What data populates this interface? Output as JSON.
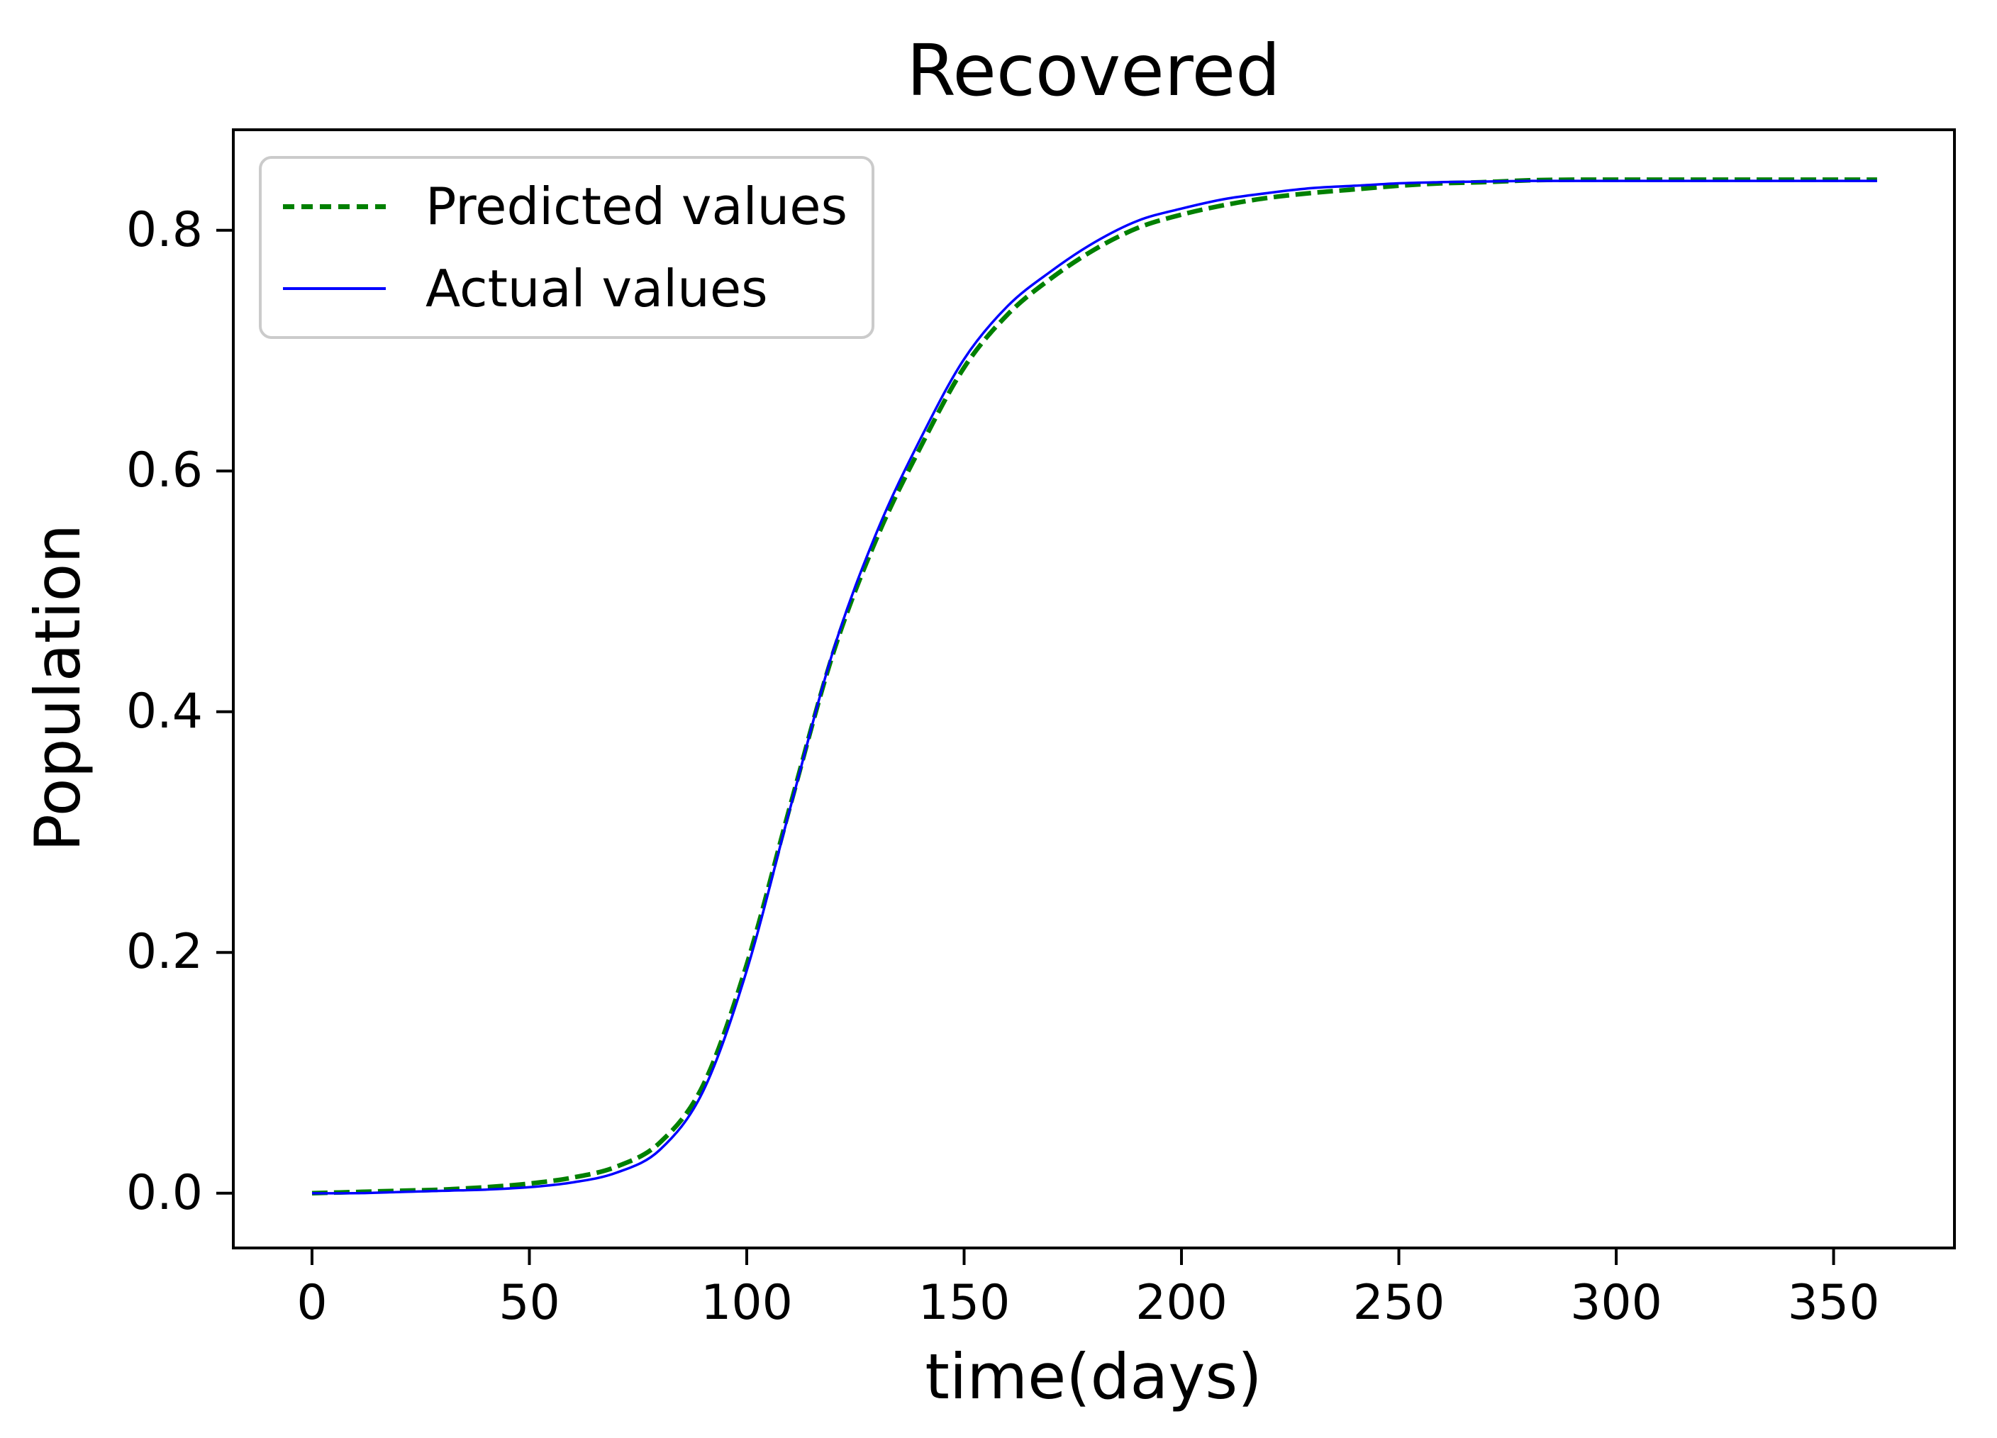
{
  "figure": {
    "background": "#ffffff",
    "axis_color": "#000000",
    "legend_border_color": "#cbcbcb"
  },
  "chart_data": {
    "type": "line",
    "title": "Recovered",
    "xlabel": "time(days)",
    "ylabel": "Population",
    "xlim": [
      -18.1,
      377.8
    ],
    "ylim": [
      -0.0455,
      0.8835
    ],
    "x_ticks": [
      0,
      50,
      100,
      150,
      200,
      250,
      300,
      350
    ],
    "y_ticks": [
      "0.0",
      "0.2",
      "0.4",
      "0.6",
      "0.8"
    ],
    "grid": false,
    "legend_position": "upper left",
    "x": [
      0,
      10,
      20,
      30,
      40,
      50,
      60,
      70,
      80,
      90,
      100,
      110,
      120,
      130,
      140,
      150,
      160,
      170,
      180,
      190,
      200,
      210,
      220,
      230,
      240,
      250,
      260,
      270,
      280,
      290,
      300,
      310,
      320,
      330,
      340,
      350,
      360
    ],
    "series": [
      {
        "name": "Predicted values",
        "color": "#008000",
        "style": "dashed",
        "values": [
          0.0,
          0.001,
          0.002,
          0.003,
          0.005,
          0.008,
          0.013,
          0.022,
          0.042,
          0.09,
          0.19,
          0.322,
          0.45,
          0.545,
          0.62,
          0.686,
          0.73,
          0.76,
          0.784,
          0.802,
          0.813,
          0.821,
          0.827,
          0.831,
          0.834,
          0.837,
          0.839,
          0.84,
          0.8415,
          0.842,
          0.842,
          0.842,
          0.842,
          0.842,
          0.842,
          0.842,
          0.842
        ]
      },
      {
        "name": "Actual values",
        "color": "#0000ff",
        "style": "solid",
        "values": [
          0.0,
          0.0,
          0.001,
          0.002,
          0.003,
          0.005,
          0.009,
          0.017,
          0.036,
          0.085,
          0.185,
          0.32,
          0.452,
          0.55,
          0.627,
          0.693,
          0.737,
          0.766,
          0.79,
          0.808,
          0.818,
          0.826,
          0.831,
          0.835,
          0.837,
          0.839,
          0.84,
          0.8405,
          0.841,
          0.841,
          0.841,
          0.841,
          0.841,
          0.841,
          0.841,
          0.841,
          0.841
        ]
      }
    ]
  }
}
